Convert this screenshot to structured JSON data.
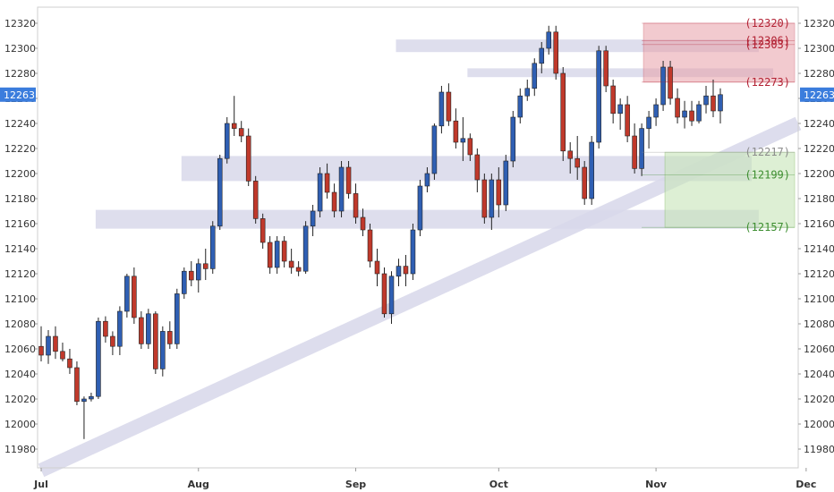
{
  "chart_data": {
    "type": "candlestick",
    "ylim": [
      11965,
      12330
    ],
    "y_ticks": [
      11980,
      12000,
      12020,
      12040,
      12060,
      12080,
      12100,
      12120,
      12140,
      12160,
      12180,
      12200,
      12220,
      12240,
      12260,
      12280,
      12300,
      12320
    ],
    "x_ticks": [
      {
        "label": "Jul",
        "index": 0
      },
      {
        "label": "Aug",
        "index": 22
      },
      {
        "label": "Sep",
        "index": 44
      },
      {
        "label": "Oct",
        "index": 64
      },
      {
        "label": "Nov",
        "index": 86
      },
      {
        "label": "Dec",
        "index": 107
      }
    ],
    "current_price": {
      "label": "12263",
      "value": 12263,
      "color": "#3b7ddd"
    },
    "colors": {
      "up": "#2f5fb3",
      "down": "#c0392b",
      "zone": "#d8d8ea",
      "trend": "#d8d8ea",
      "sell_zone": "#e8a0a8",
      "buy_zone": "#c8e6b8"
    },
    "candles": [
      [
        12062,
        12078,
        12050,
        12055
      ],
      [
        12055,
        12075,
        12048,
        12070
      ],
      [
        12070,
        12078,
        12052,
        12058
      ],
      [
        12058,
        12065,
        12050,
        12052
      ],
      [
        12052,
        12060,
        12040,
        12045
      ],
      [
        12045,
        12050,
        12015,
        12018
      ],
      [
        12018,
        12022,
        11988,
        12020
      ],
      [
        12020,
        12025,
        12018,
        12022
      ],
      [
        12022,
        12085,
        12020,
        12082
      ],
      [
        12082,
        12086,
        12065,
        12070
      ],
      [
        12070,
        12074,
        12055,
        12062
      ],
      [
        12062,
        12094,
        12055,
        12090
      ],
      [
        12090,
        12120,
        12085,
        12118
      ],
      [
        12118,
        12125,
        12080,
        12085
      ],
      [
        12085,
        12090,
        12060,
        12064
      ],
      [
        12064,
        12092,
        12060,
        12088
      ],
      [
        12088,
        12090,
        12040,
        12044
      ],
      [
        12044,
        12078,
        12038,
        12074
      ],
      [
        12074,
        12082,
        12060,
        12064
      ],
      [
        12064,
        12108,
        12060,
        12104
      ],
      [
        12104,
        12125,
        12100,
        12122
      ],
      [
        12122,
        12130,
        12110,
        12115
      ],
      [
        12115,
        12132,
        12105,
        12128
      ],
      [
        12128,
        12140,
        12115,
        12124
      ],
      [
        12124,
        12162,
        12120,
        12158
      ],
      [
        12158,
        12215,
        12155,
        12212
      ],
      [
        12212,
        12245,
        12208,
        12240
      ],
      [
        12240,
        12262,
        12230,
        12236
      ],
      [
        12236,
        12242,
        12225,
        12230
      ],
      [
        12230,
        12236,
        12190,
        12194
      ],
      [
        12194,
        12198,
        12160,
        12164
      ],
      [
        12164,
        12168,
        12140,
        12145
      ],
      [
        12145,
        12150,
        12120,
        12125
      ],
      [
        12125,
        12150,
        12120,
        12146
      ],
      [
        12146,
        12150,
        12125,
        12130
      ],
      [
        12130,
        12140,
        12120,
        12125
      ],
      [
        12125,
        12130,
        12118,
        12122
      ],
      [
        12122,
        12162,
        12120,
        12158
      ],
      [
        12158,
        12175,
        12150,
        12170
      ],
      [
        12170,
        12205,
        12165,
        12200
      ],
      [
        12200,
        12208,
        12180,
        12185
      ],
      [
        12185,
        12192,
        12165,
        12170
      ],
      [
        12170,
        12210,
        12165,
        12205
      ],
      [
        12205,
        12210,
        12180,
        12184
      ],
      [
        12184,
        12192,
        12160,
        12165
      ],
      [
        12165,
        12172,
        12150,
        12155
      ],
      [
        12155,
        12160,
        12125,
        12130
      ],
      [
        12130,
        12140,
        12110,
        12120
      ],
      [
        12120,
        12125,
        12085,
        12088
      ],
      [
        12088,
        12122,
        12080,
        12118
      ],
      [
        12118,
        12132,
        12110,
        12126
      ],
      [
        12126,
        12135,
        12110,
        12120
      ],
      [
        12120,
        12160,
        12115,
        12155
      ],
      [
        12155,
        12195,
        12150,
        12190
      ],
      [
        12190,
        12205,
        12185,
        12200
      ],
      [
        12200,
        12240,
        12195,
        12238
      ],
      [
        12238,
        12270,
        12232,
        12265
      ],
      [
        12265,
        12272,
        12238,
        12242
      ],
      [
        12242,
        12252,
        12220,
        12225
      ],
      [
        12225,
        12245,
        12210,
        12228
      ],
      [
        12228,
        12232,
        12210,
        12215
      ],
      [
        12215,
        12220,
        12185,
        12195
      ],
      [
        12195,
        12200,
        12160,
        12165
      ],
      [
        12165,
        12200,
        12155,
        12195
      ],
      [
        12195,
        12205,
        12165,
        12175
      ],
      [
        12175,
        12215,
        12170,
        12210
      ],
      [
        12210,
        12250,
        12205,
        12245
      ],
      [
        12245,
        12268,
        12240,
        12262
      ],
      [
        12262,
        12275,
        12258,
        12268
      ],
      [
        12268,
        12292,
        12262,
        12288
      ],
      [
        12288,
        12305,
        12280,
        12300
      ],
      [
        12300,
        12318,
        12295,
        12313
      ],
      [
        12313,
        12318,
        12275,
        12280
      ],
      [
        12280,
        12285,
        12210,
        12218
      ],
      [
        12218,
        12225,
        12200,
        12212
      ],
      [
        12212,
        12230,
        12195,
        12205
      ],
      [
        12205,
        12210,
        12175,
        12180
      ],
      [
        12180,
        12230,
        12175,
        12225
      ],
      [
        12225,
        12302,
        12220,
        12298
      ],
      [
        12298,
        12302,
        12265,
        12270
      ],
      [
        12270,
        12275,
        12240,
        12248
      ],
      [
        12248,
        12260,
        12235,
        12255
      ],
      [
        12255,
        12262,
        12225,
        12230
      ],
      [
        12230,
        12240,
        12200,
        12204
      ],
      [
        12204,
        12240,
        12198,
        12236
      ],
      [
        12236,
        12250,
        12220,
        12245
      ],
      [
        12245,
        12260,
        12238,
        12255
      ],
      [
        12255,
        12290,
        12250,
        12285
      ],
      [
        12285,
        12290,
        12255,
        12260
      ],
      [
        12260,
        12268,
        12240,
        12245
      ],
      [
        12245,
        12258,
        12236,
        12250
      ],
      [
        12250,
        12258,
        12238,
        12242
      ],
      [
        12242,
        12258,
        12240,
        12255
      ],
      [
        12255,
        12270,
        12248,
        12262
      ],
      [
        12262,
        12275,
        12245,
        12250
      ],
      [
        12250,
        12268,
        12240,
        12263
      ]
    ],
    "zones": [
      {
        "from_index": 60,
        "to_index": 102,
        "low": 12277,
        "high": 12284
      },
      {
        "from_index": 50,
        "to_index": 100,
        "low": 12297,
        "high": 12307
      },
      {
        "from_index": 20,
        "to_index": 99,
        "low": 12194,
        "high": 12214
      },
      {
        "from_index": 8,
        "to_index": 100,
        "low": 12156,
        "high": 12171
      }
    ],
    "sell_zone": {
      "from_index": 84,
      "to_index": 108,
      "low": 12273,
      "high": 12320
    },
    "buy_zone": {
      "from_index": 87,
      "to_index": 108,
      "low": 12157,
      "high": 12217
    },
    "trendline": {
      "start_index": 0,
      "start_value": 11963,
      "end_index": 108,
      "end_value": 12240
    },
    "levels": [
      {
        "label": "(12320)",
        "value": 12320,
        "color": "#b22234"
      },
      {
        "label": "(12306)",
        "value": 12306,
        "color": "#b22234"
      },
      {
        "label": "(12303)",
        "value": 12303,
        "color": "#b22234"
      },
      {
        "label": "(12273)",
        "value": 12273,
        "color": "#b22234"
      },
      {
        "label": "(12217)",
        "value": 12217,
        "color": "#8c8c8c"
      },
      {
        "label": "(12199)",
        "value": 12199,
        "color": "#3c8d2f"
      },
      {
        "label": "(12157)",
        "value": 12157,
        "color": "#3c8d2f"
      }
    ]
  }
}
